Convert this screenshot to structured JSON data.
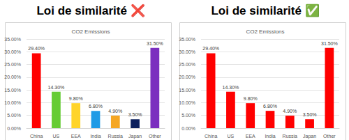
{
  "chart_data": [
    {
      "type": "bar",
      "title": "Loi de similarité ❌",
      "subtitle": "CO2 Emissions",
      "categories": [
        "China",
        "US",
        "EEA",
        "India",
        "Russia",
        "Japan",
        "Other"
      ],
      "values": [
        29.4,
        14.3,
        9.8,
        6.8,
        4.9,
        3.5,
        31.5
      ],
      "value_labels": [
        "29.40%",
        "14.30%",
        "9.80%",
        "6.80%",
        "4.90%",
        "3.50%",
        "31.50%"
      ],
      "data_labels": true,
      "colors": [
        "#ff0000",
        "#66cc33",
        "#ffd42a",
        "#1f9be6",
        "#f5a623",
        "#0b1f5c",
        "#7b2fbf"
      ],
      "ylim": [
        0,
        35
      ],
      "yticks": [
        {
          "value": 0,
          "label": "0.00%"
        },
        {
          "value": 5,
          "label": "5.00%"
        },
        {
          "value": 10,
          "label": "10.00%"
        },
        {
          "value": 15,
          "label": "15.00%"
        },
        {
          "value": 20,
          "label": "20.00%"
        },
        {
          "value": 25,
          "label": "25.00%"
        },
        {
          "value": 30,
          "label": "30.00%"
        },
        {
          "value": 35,
          "label": "35.00%"
        }
      ],
      "grid": true
    },
    {
      "type": "bar",
      "title": "Loi de similarité ✅",
      "subtitle": "CO2 Emissions",
      "categories": [
        "China",
        "US",
        "EEA",
        "India",
        "Russia",
        "Japan",
        "Other"
      ],
      "values": [
        29.4,
        14.3,
        9.8,
        6.8,
        4.9,
        3.5,
        31.5
      ],
      "value_labels": [
        "29.40%",
        "14.30%",
        "9.80%",
        "6.80%",
        "4.90%",
        "3.50%",
        "31.50%"
      ],
      "data_labels": true,
      "color": "#ff0000",
      "ylim": [
        0,
        35
      ],
      "yticks": [
        {
          "value": 0,
          "label": "0.00%"
        },
        {
          "value": 5,
          "label": "5.00%"
        },
        {
          "value": 10,
          "label": "10.00%"
        },
        {
          "value": 15,
          "label": "15.00%"
        },
        {
          "value": 20,
          "label": "20.00%"
        },
        {
          "value": 25,
          "label": "25.00%"
        },
        {
          "value": 30,
          "label": "30.00%"
        },
        {
          "value": 35,
          "label": "35.00%"
        }
      ],
      "grid": true
    }
  ]
}
